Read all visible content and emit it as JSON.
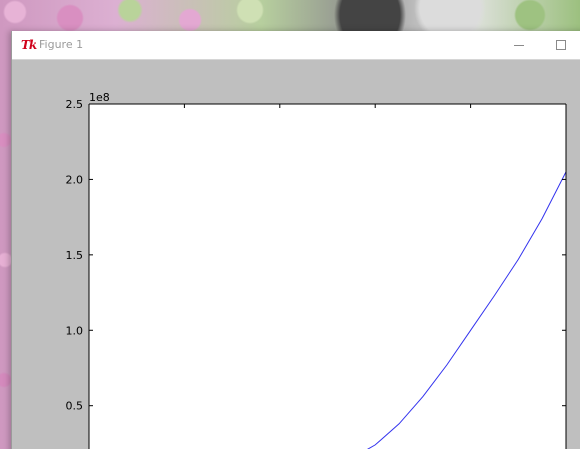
{
  "window": {
    "title": "Figure 1",
    "app_icon": "matplotlib-tk-icon"
  },
  "titlebar_buttons": {
    "minimize": "minimize-icon",
    "maximize": "maximize-icon"
  },
  "chart_data": {
    "type": "line",
    "title": "",
    "xlabel": "",
    "ylabel": "",
    "offset_label": "1e8",
    "y_ticks": [
      "0.5",
      "1.0",
      "1.5",
      "2.0",
      "2.5"
    ],
    "y_tick_values": [
      0.5,
      1.0,
      1.5,
      2.0,
      2.5
    ],
    "ylim": [
      0.14,
      2.5
    ],
    "xlim": [
      0,
      1
    ],
    "x_tick_positions": [
      0.2,
      0.4,
      0.6,
      0.8
    ],
    "grid": false,
    "series": [
      {
        "color": "#3333ee",
        "x": [
          0.55,
          0.6,
          0.65,
          0.7,
          0.75,
          0.8,
          0.85,
          0.9,
          0.95,
          1.0
        ],
        "y": [
          0.15,
          0.24,
          0.38,
          0.56,
          0.77,
          1.0,
          1.23,
          1.47,
          1.74,
          2.05
        ]
      }
    ]
  }
}
